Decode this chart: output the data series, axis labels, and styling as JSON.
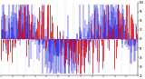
{
  "background_color": "#ffffff",
  "grid_color": "#888888",
  "ylim": [
    20,
    100
  ],
  "n_days": 365,
  "blue_color": "#0000dd",
  "red_color": "#dd0000",
  "ref_line": 60,
  "seed": 42,
  "ytick_labels": [
    "20",
    "30",
    "40",
    "50",
    "60",
    "70",
    "80",
    "90",
    "100"
  ],
  "ytick_vals": [
    20,
    30,
    40,
    50,
    60,
    70,
    80,
    90,
    100
  ],
  "n_gridlines": 18
}
